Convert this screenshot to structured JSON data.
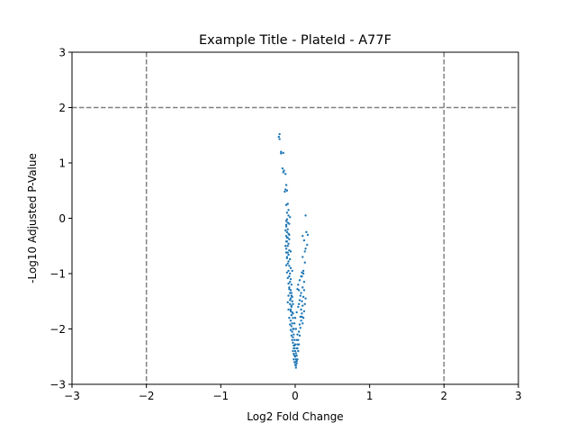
{
  "chart_data": {
    "type": "scatter",
    "title": "Example Title - PlateId - A77F",
    "xlabel": "Log2 Fold Change",
    "ylabel": "-Log10 Adjusted P-Value",
    "xlim": [
      -3,
      3
    ],
    "ylim": [
      -3,
      3
    ],
    "xticks": [
      -3,
      -2,
      -1,
      0,
      1,
      2,
      3
    ],
    "yticks": [
      -3,
      -2,
      -1,
      0,
      1,
      2,
      3
    ],
    "xtick_labels": [
      "−3",
      "−2",
      "−1",
      "0",
      "1",
      "2",
      "3"
    ],
    "ytick_labels": [
      "−3",
      "−2",
      "−1",
      "0",
      "1",
      "2",
      "3"
    ],
    "grid": false,
    "threshold_lines": {
      "vertical": [
        -2,
        2
      ],
      "horizontal": [
        2
      ],
      "color": "#808080",
      "style": "dashed"
    },
    "point_color": "#1f77b4",
    "points": [
      [
        -0.21,
        1.52
      ],
      [
        -0.22,
        1.47
      ],
      [
        -0.21,
        1.43
      ],
      [
        -0.19,
        1.2
      ],
      [
        -0.16,
        1.18
      ],
      [
        -0.19,
        1.17
      ],
      [
        -0.17,
        0.9
      ],
      [
        -0.15,
        0.86
      ],
      [
        -0.16,
        0.83
      ],
      [
        -0.13,
        0.8
      ],
      [
        -0.12,
        0.6
      ],
      [
        -0.13,
        0.52
      ],
      [
        -0.11,
        0.5
      ],
      [
        -0.14,
        0.48
      ],
      [
        -0.1,
        0.26
      ],
      [
        -0.12,
        0.24
      ],
      [
        -0.09,
        0.05
      ],
      [
        -0.07,
        0.02
      ],
      [
        -0.1,
        -0.08
      ],
      [
        -0.08,
        -0.1
      ],
      [
        -0.12,
        -0.15
      ],
      [
        -0.1,
        -0.2
      ],
      [
        -0.11,
        -0.25
      ],
      [
        -0.09,
        -0.28
      ],
      [
        -0.12,
        -0.32
      ],
      [
        -0.1,
        -0.35
      ],
      [
        -0.08,
        -0.38
      ],
      [
        -0.11,
        -0.42
      ],
      [
        -0.09,
        -0.46
      ],
      [
        -0.1,
        -0.5
      ],
      [
        -0.12,
        -0.55
      ],
      [
        -0.08,
        -0.58
      ],
      [
        -0.1,
        -0.62
      ],
      [
        -0.09,
        -0.66
      ],
      [
        -0.11,
        -0.7
      ],
      [
        -0.07,
        -0.74
      ],
      [
        -0.09,
        -0.78
      ],
      [
        -0.1,
        -0.82
      ],
      [
        -0.08,
        -0.86
      ],
      [
        -0.06,
        -0.9
      ],
      [
        -0.09,
        -0.95
      ],
      [
        -0.07,
        -1.0
      ],
      [
        -0.08,
        -1.05
      ],
      [
        -0.06,
        -1.1
      ],
      [
        -0.07,
        -1.15
      ],
      [
        -0.05,
        -1.2
      ],
      [
        -0.08,
        -1.25
      ],
      [
        -0.06,
        -1.3
      ],
      [
        -0.07,
        -1.35
      ],
      [
        -0.05,
        -1.4
      ],
      [
        -0.06,
        -1.45
      ],
      [
        -0.04,
        -1.5
      ],
      [
        -0.07,
        -1.55
      ],
      [
        -0.05,
        -1.6
      ],
      [
        -0.06,
        -1.65
      ],
      [
        -0.04,
        -1.7
      ],
      [
        -0.05,
        -1.75
      ],
      [
        -0.03,
        -1.8
      ],
      [
        -0.06,
        -1.85
      ],
      [
        -0.04,
        -1.9
      ],
      [
        -0.05,
        -1.95
      ],
      [
        -0.03,
        -2.0
      ],
      [
        -0.04,
        -2.05
      ],
      [
        -0.02,
        -2.1
      ],
      [
        -0.03,
        -2.15
      ],
      [
        -0.01,
        -2.2
      ],
      [
        -0.03,
        -2.25
      ],
      [
        -0.02,
        -2.3
      ],
      [
        -0.01,
        -2.35
      ],
      [
        0.0,
        -2.4
      ],
      [
        -0.02,
        -2.45
      ],
      [
        0.0,
        -2.5
      ],
      [
        0.01,
        -2.55
      ],
      [
        -0.01,
        -2.6
      ],
      [
        0.0,
        -2.65
      ],
      [
        0.01,
        -2.7
      ],
      [
        0.02,
        -2.62
      ],
      [
        0.03,
        -2.55
      ],
      [
        0.02,
        -2.48
      ],
      [
        0.04,
        -2.4
      ],
      [
        0.03,
        -2.35
      ],
      [
        0.05,
        -2.28
      ],
      [
        0.04,
        -2.2
      ],
      [
        0.06,
        -2.12
      ],
      [
        0.05,
        -2.05
      ],
      [
        0.07,
        -1.98
      ],
      [
        0.06,
        -1.92
      ],
      [
        0.08,
        -1.85
      ],
      [
        0.07,
        -1.78
      ],
      [
        0.09,
        -1.72
      ],
      [
        0.08,
        -1.65
      ],
      [
        0.1,
        -1.58
      ],
      [
        0.09,
        -1.5
      ],
      [
        0.11,
        -1.42
      ],
      [
        0.08,
        -1.35
      ],
      [
        0.1,
        -1.25
      ],
      [
        0.12,
        -1.15
      ],
      [
        0.09,
        -1.05
      ],
      [
        0.11,
        -0.95
      ],
      [
        0.13,
        -0.8
      ],
      [
        0.1,
        -0.7
      ],
      [
        0.14,
        -0.55
      ],
      [
        0.12,
        -0.4
      ],
      [
        0.1,
        -0.32
      ],
      [
        0.15,
        -0.25
      ],
      [
        0.13,
        -0.6
      ],
      [
        0.16,
        -0.48
      ],
      [
        0.14,
        0.05
      ],
      [
        0.17,
        -0.3
      ],
      [
        0.11,
        -1.0
      ],
      [
        -0.05,
        -1.35
      ],
      [
        -0.03,
        -1.72
      ],
      [
        -0.02,
        -2.0
      ],
      [
        -0.08,
        -0.3
      ],
      [
        -0.06,
        -0.6
      ],
      [
        -0.04,
        -0.95
      ],
      [
        -0.11,
        0.1
      ],
      [
        -0.12,
        -0.05
      ],
      [
        -0.09,
        0.15
      ],
      [
        0.02,
        -2.2
      ],
      [
        0.03,
        -2.1
      ],
      [
        0.01,
        -2.0
      ],
      [
        -0.01,
        -1.9
      ],
      [
        0.0,
        -1.8
      ],
      [
        0.02,
        -1.7
      ],
      [
        0.04,
        -1.6
      ],
      [
        0.05,
        -1.55
      ],
      [
        0.06,
        -1.48
      ],
      [
        0.07,
        -1.4
      ],
      [
        0.05,
        -1.3
      ],
      [
        0.03,
        -1.28
      ],
      [
        0.04,
        -1.2
      ],
      [
        0.06,
        -1.12
      ],
      [
        0.08,
        -1.05
      ],
      [
        0.09,
        -0.98
      ],
      [
        -0.03,
        -1.55
      ],
      [
        -0.04,
        -1.42
      ],
      [
        -0.05,
        -1.58
      ],
      [
        -0.06,
        -1.68
      ],
      [
        -0.07,
        -1.48
      ],
      [
        -0.02,
        -2.35
      ],
      [
        -0.03,
        -2.4
      ],
      [
        -0.01,
        -2.48
      ],
      [
        0.01,
        -2.44
      ],
      [
        0.02,
        -2.35
      ],
      [
        0.03,
        -2.28
      ],
      [
        0.02,
        -2.58
      ],
      [
        -0.02,
        -2.55
      ],
      [
        0.0,
        -2.6
      ],
      [
        0.01,
        -2.66
      ],
      [
        -0.01,
        -2.3
      ],
      [
        0.0,
        -2.28
      ],
      [
        -0.04,
        -2.2
      ],
      [
        -0.05,
        -2.12
      ],
      [
        -0.06,
        -2.02
      ],
      [
        -0.07,
        -1.92
      ],
      [
        -0.08,
        -1.8
      ],
      [
        -0.09,
        -1.65
      ],
      [
        -0.1,
        -1.52
      ],
      [
        -0.09,
        -1.4
      ],
      [
        -0.08,
        -1.28
      ],
      [
        -0.09,
        -1.18
      ],
      [
        -0.1,
        -1.08
      ],
      [
        -0.11,
        -0.98
      ],
      [
        -0.12,
        -0.85
      ],
      [
        -0.11,
        -0.72
      ],
      [
        -0.12,
        -0.62
      ],
      [
        -0.13,
        -0.5
      ],
      [
        -0.12,
        -0.42
      ],
      [
        -0.11,
        -0.35
      ],
      [
        -0.13,
        -0.22
      ],
      [
        -0.12,
        -0.12
      ],
      [
        -0.11,
        -0.02
      ],
      [
        0.12,
        -1.3
      ],
      [
        0.14,
        -1.45
      ],
      [
        0.13,
        -1.55
      ],
      [
        0.12,
        -1.68
      ],
      [
        0.11,
        -1.8
      ],
      [
        0.1,
        -1.9
      ],
      [
        0.09,
        -1.78
      ]
    ]
  }
}
